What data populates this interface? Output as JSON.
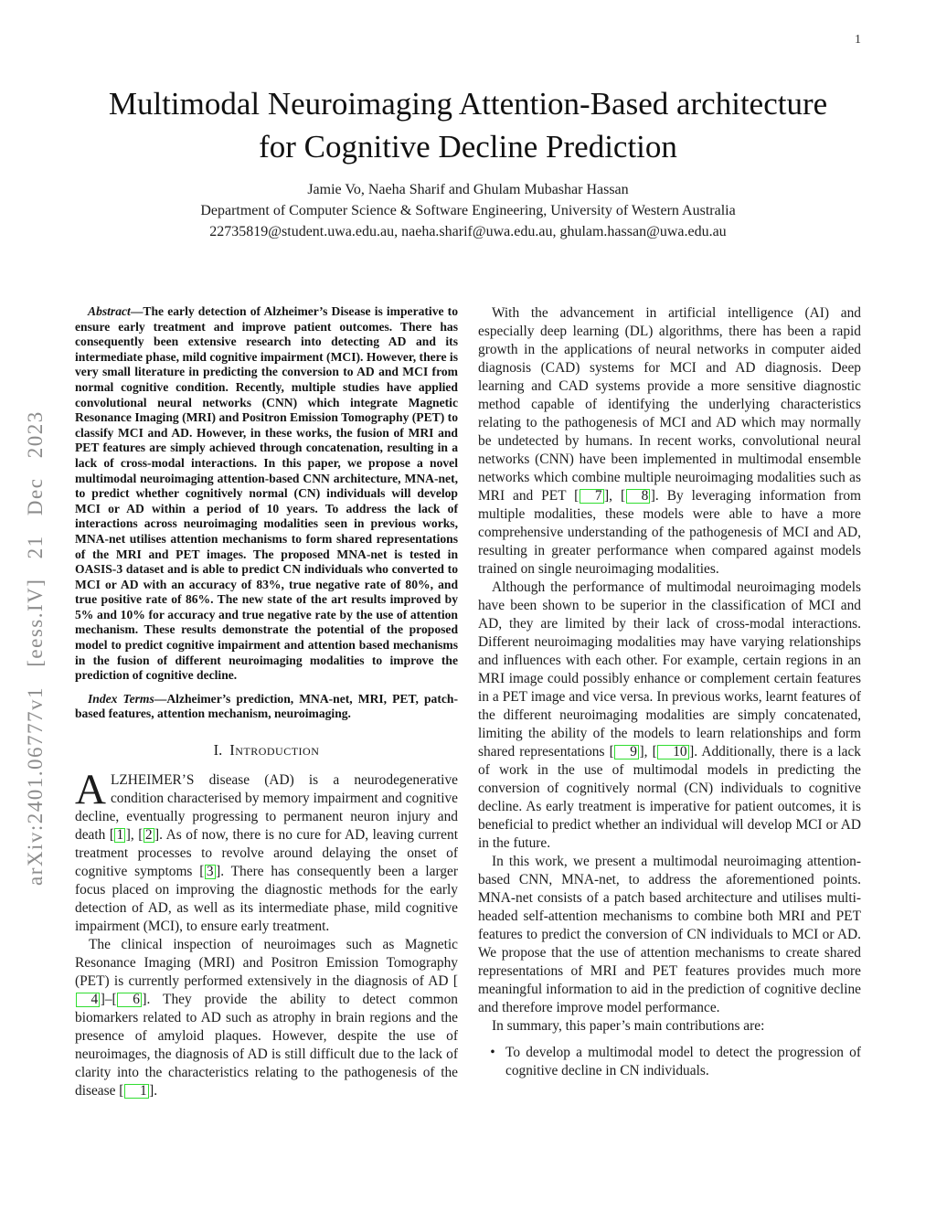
{
  "page": {
    "number": "1"
  },
  "sidebar": {
    "stamp": "arXiv:2401.06777v1 [eess.IV] 21 Dec 2023"
  },
  "header": {
    "title": "Multimodal Neuroimaging Attention-Based architecture for Cognitive Decline Prediction",
    "authors": "Jamie Vo, Naeha Sharif and Ghulam Mubashar Hassan",
    "affiliation": "Department of Computer Science & Software Engineering, University of Western Australia",
    "emails": "22735819@student.uwa.edu.au, naeha.sharif@uwa.edu.au, ghulam.hassan@uwa.edu.au"
  },
  "abstract": {
    "lead": "Abstract",
    "body": "—The early detection of Alzheimer’s Disease is imperative to ensure early treatment and improve patient outcomes. There has consequently been extensive research into detecting AD and its intermediate phase, mild cognitive impairment (MCI). However, there is very small literature in predicting the conversion to AD and MCI from normal cognitive condition. Recently, multiple studies have applied convolutional neural networks (CNN) which integrate Magnetic Resonance Imaging (MRI) and Positron Emission Tomography (PET) to classify MCI and AD. However, in these works, the fusion of MRI and PET features are simply achieved through concatenation, resulting in a lack of cross-modal interactions. In this paper, we propose a novel multimodal neuroimaging attention-based CNN architecture, MNA-net, to predict whether cognitively normal (CN) individuals will develop MCI or AD within a period of 10 years. To address the lack of interactions across neuroimaging modalities seen in previous works, MNA-net utilises attention mechanisms to form shared representations of the MRI and PET images. The proposed MNA-net is tested in OASIS-3 dataset and is able to predict CN individuals who converted to MCI or AD with an accuracy of 83%, true negative rate of 80%, and true positive rate of 86%. The new state of the art results improved by 5% and 10% for accuracy and true negative rate by the use of attention mechanism. These results demonstrate the potential of the proposed model to predict cognitive impairment and attention based mechanisms in the fusion of different neuroimaging modalities to improve the prediction of cognitive decline."
  },
  "index_terms": {
    "lead": "Index Terms",
    "body": "—Alzheimer’s prediction, MNA-net, MRI, PET, patch-based features, attention mechanism, neuroimaging."
  },
  "sections": {
    "intro": {
      "number": "I.",
      "label": "Introduction"
    }
  },
  "left_column": {
    "intro_p1": {
      "dropcap": "A",
      "segments": [
        {
          "t": "LZHEIMER’S disease (AD) is a neurodegenerative condition characterised by memory impairment and cognitive decline, eventually progressing to permanent neuron injury and death "
        },
        {
          "c": "1"
        },
        {
          "t": ", "
        },
        {
          "c": "2"
        },
        {
          "t": ". As of now, there is no cure for AD, leaving current treatment processes to revolve around delaying the onset of cognitive symptoms "
        },
        {
          "c": "3"
        },
        {
          "t": ". There has consequently been a larger focus placed on improving the diagnostic methods for the early detection of AD, as well as its intermediate phase, mild cognitive impairment (MCI), to ensure early treatment."
        }
      ]
    },
    "intro_p2": {
      "segments": [
        {
          "t": "The clinical inspection of neuroimages such as Magnetic Resonance Imaging (MRI) and Positron Emission Tomography (PET) is currently performed extensively in the diagnosis of AD "
        },
        {
          "c": "4"
        },
        {
          "t": "–"
        },
        {
          "c": "6"
        },
        {
          "t": ". They provide the ability to detect common biomarkers related to AD such as atrophy in brain regions and the presence of amyloid plaques. However, despite the use of neuroimages, the diagnosis of AD is still difficult due to the lack of clarity into the characteristics relating to the pathogenesis of the disease "
        },
        {
          "c": "1"
        },
        {
          "t": "."
        }
      ]
    }
  },
  "right_column": {
    "p1": {
      "segments": [
        {
          "t": "With the advancement in artificial intelligence (AI) and especially deep learning (DL) algorithms, there has been a rapid growth in the applications of neural networks in computer aided diagnosis (CAD) systems for MCI and AD diagnosis. Deep learning and CAD systems provide a more sensitive diagnostic method capable of identifying the underlying characteristics relating to the pathogenesis of MCI and AD which may normally be undetected by humans. In recent works, convolutional neural networks (CNN) have been implemented in multimodal ensemble networks which combine multiple neuroimaging modalities such as MRI and PET "
        },
        {
          "c": "7"
        },
        {
          "t": ", "
        },
        {
          "c": "8"
        },
        {
          "t": ". By leveraging information from multiple modalities, these models were able to have a more comprehensive understanding of the pathogenesis of MCI and AD, resulting in greater performance when compared against models trained on single neuroimaging modalities."
        }
      ]
    },
    "p2": {
      "segments": [
        {
          "t": "Although the performance of multimodal neuroimaging models have been shown to be superior in the classification of MCI and AD, they are limited by their lack of cross-modal interactions. Different neuroimaging modalities may have varying relationships and influences with each other. For example, certain regions in an MRI image could possibly enhance or complement certain features in a PET image and vice versa. In previous works, learnt features of the different neuroimaging modalities are simply concatenated, limiting the ability of the models to learn relationships and form shared representations "
        },
        {
          "c": "9"
        },
        {
          "t": ", "
        },
        {
          "c": "10"
        },
        {
          "t": ". Additionally, there is a lack of work in the use of multimodal models in predicting the conversion of cognitively normal (CN) individuals to cognitive decline. As early treatment is imperative for patient outcomes, it is beneficial to predict whether an individual will develop MCI or AD in the future."
        }
      ]
    },
    "p3": {
      "segments": [
        {
          "t": "In this work, we present a multimodal neuroimaging attention-based CNN, MNA-net, to address the aforementioned points. MNA-net consists of a patch based architecture and utilises multi-headed self-attention mechanisms to combine both MRI and PET features to predict the conversion of CN individuals to MCI or AD. We propose that the use of attention mechanisms to create shared representations of MRI and PET features provides much more meaningful information to aid in the prediction of cognitive decline and therefore improve model performance."
        }
      ]
    },
    "p4": {
      "segments": [
        {
          "t": "In summary, this paper’s main contributions are:"
        }
      ]
    },
    "bullet_marker": "•",
    "bullets": [
      "To develop a multimodal model to detect the progression of cognitive decline in CN individuals."
    ]
  },
  "colors": {
    "citation_green": "#30dd30",
    "stamp_gray": "#8c8c8c"
  }
}
